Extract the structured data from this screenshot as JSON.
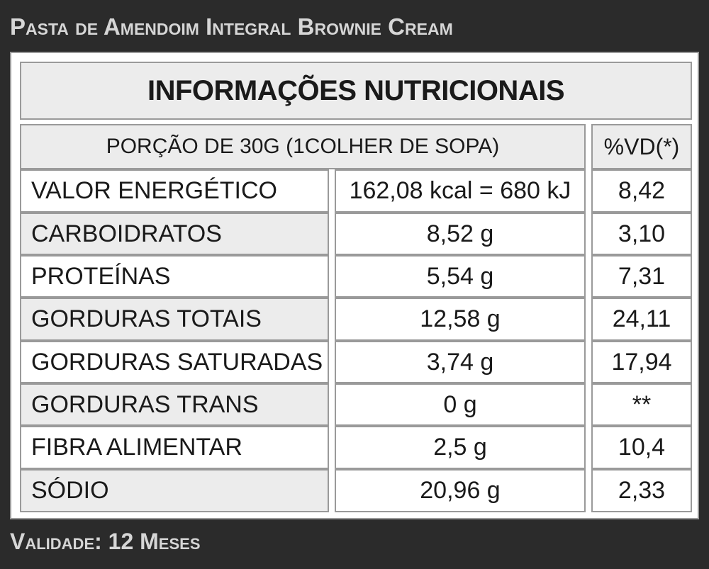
{
  "product_title": "Pasta de Amendoim Integral Brownie Cream",
  "table": {
    "heading": "INFORMAÇÕES NUTRICIONAIS",
    "portion": "PORÇÃO DE 30G (1COLHER DE SOPA)",
    "vd_header": "%VD(*)",
    "rows": [
      {
        "name": "VALOR ENERGÉTICO",
        "amount": "162,08 kcal = 680 kJ",
        "vd": "8,42"
      },
      {
        "name": "CARBOIDRATOS",
        "amount": "8,52 g",
        "vd": "3,10"
      },
      {
        "name": "PROTEÍNAS",
        "amount": "5,54 g",
        "vd": "7,31"
      },
      {
        "name": "GORDURAS TOTAIS",
        "amount": "12,58 g",
        "vd": "24,11"
      },
      {
        "name": "GORDURAS SATURADAS",
        "amount": "3,74 g",
        "vd": "17,94"
      },
      {
        "name": "GORDURAS TRANS",
        "amount": "0 g",
        "vd": "**"
      },
      {
        "name": "FIBRA ALIMENTAR",
        "amount": "2,5 g",
        "vd": "10,4"
      },
      {
        "name": "SÓDIO",
        "amount": "20,96 g",
        "vd": "2,33"
      }
    ]
  },
  "footer_text": "Validade: 12 Meses"
}
